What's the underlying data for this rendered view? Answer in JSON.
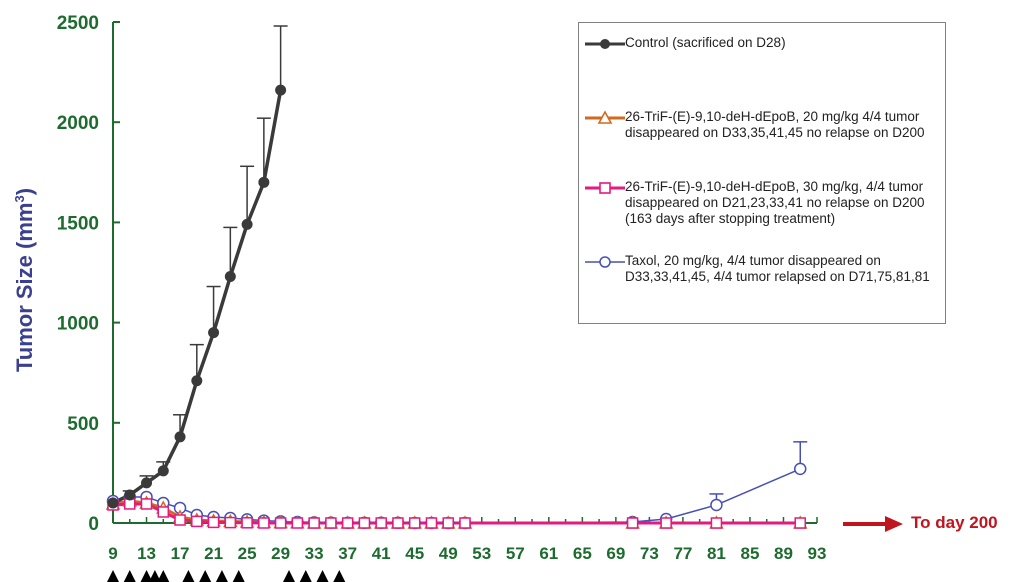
{
  "chart_data": {
    "type": "line",
    "title": "",
    "ylabel_text": "Tumor Size (mm",
    "ylabel_sup": "3",
    "ylabel_close": ")",
    "xlabel": "",
    "xlim": [
      9,
      93
    ],
    "ylim": [
      0,
      2500
    ],
    "x_ticks": [
      9,
      13,
      17,
      21,
      25,
      29,
      33,
      37,
      41,
      45,
      49,
      53,
      57,
      61,
      65,
      69,
      73,
      77,
      81,
      85,
      89,
      93
    ],
    "y_ticks": [
      0,
      500,
      1000,
      1500,
      2000,
      2500
    ],
    "treatment_days": [
      9,
      11,
      13,
      14,
      15,
      18,
      20,
      22,
      24,
      30,
      32,
      34,
      36
    ],
    "annotation": "To day 200",
    "legend_placement": "top-right",
    "series": [
      {
        "name": "Control (sacrificed on D28)",
        "color": "#3a3a3a",
        "marker": "filled-circle",
        "x": [
          9,
          11,
          13,
          15,
          17,
          19,
          21,
          23,
          25,
          27,
          29
        ],
        "y": [
          100,
          140,
          200,
          260,
          430,
          710,
          950,
          1230,
          1490,
          1700,
          2160
        ],
        "err": [
          0,
          20,
          35,
          45,
          110,
          180,
          230,
          245,
          290,
          320,
          320
        ]
      },
      {
        "name": "26-TriF-(E)-9,10-deH-dEpoB, 20 mg/kg 4/4 tumor disappeared on D33,35,41,45 no relapse on D200",
        "color": "#d2691e",
        "marker": "open-triangle",
        "x": [
          9,
          11,
          13,
          15,
          17,
          19,
          21,
          23,
          25,
          27,
          29,
          31,
          33,
          35,
          37,
          39,
          41,
          43,
          45,
          47,
          49,
          51,
          71,
          75,
          81,
          91
        ],
        "y": [
          95,
          110,
          100,
          75,
          30,
          15,
          10,
          8,
          5,
          3,
          2,
          1,
          0,
          0,
          0,
          0,
          0,
          0,
          0,
          0,
          0,
          0,
          0,
          0,
          0,
          0
        ]
      },
      {
        "name": "26-TriF-(E)-9,10-deH-dEpoB, 30 mg/kg, 4/4 tumor disappeared on D21,23,33,41 no relapse on D200 (163 days after stopping treatment)",
        "color": "#e6197d",
        "marker": "open-square",
        "x": [
          9,
          11,
          13,
          15,
          17,
          19,
          21,
          23,
          25,
          27,
          29,
          31,
          33,
          35,
          37,
          39,
          41,
          43,
          45,
          47,
          49,
          51,
          71,
          75,
          81,
          91
        ],
        "y": [
          90,
          95,
          95,
          55,
          15,
          8,
          3,
          2,
          1,
          0,
          0,
          0,
          0,
          0,
          0,
          0,
          0,
          0,
          0,
          0,
          0,
          0,
          0,
          0,
          0,
          0
        ]
      },
      {
        "name": "Taxol, 20 mg/kg, 4/4 tumor disappeared on D33,33,41,45, 4/4 tumor relapsed on D71,75,81,81",
        "color": "#4650b4",
        "marker": "open-circle",
        "x": [
          9,
          11,
          13,
          15,
          17,
          19,
          21,
          23,
          25,
          27,
          29,
          31,
          33,
          35,
          37,
          39,
          41,
          43,
          45,
          47,
          49,
          51,
          71,
          75,
          81,
          91
        ],
        "y": [
          110,
          130,
          130,
          100,
          75,
          40,
          30,
          25,
          18,
          12,
          8,
          5,
          3,
          2,
          1,
          1,
          1,
          1,
          0,
          0,
          0,
          0,
          5,
          20,
          90,
          270
        ],
        "err": [
          0,
          0,
          0,
          0,
          0,
          0,
          0,
          0,
          0,
          0,
          0,
          0,
          0,
          0,
          0,
          0,
          0,
          0,
          0,
          0,
          0,
          0,
          0,
          0,
          55,
          135
        ]
      }
    ]
  }
}
